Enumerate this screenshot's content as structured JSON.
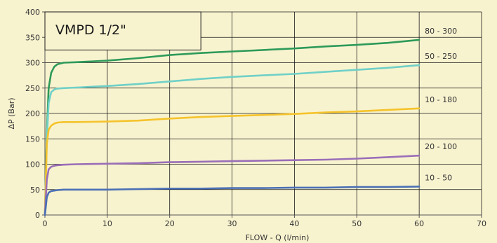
{
  "chart_data": {
    "type": "line",
    "title": "VMPD 1/2\"",
    "xlabel": "FLOW - Q (l/min)",
    "ylabel": "ΔP (Bar)",
    "xlim": [
      0,
      70
    ],
    "ylim": [
      0,
      400
    ],
    "xticks": [
      0,
      10,
      20,
      30,
      40,
      50,
      60,
      70
    ],
    "yticks": [
      0,
      50,
      100,
      150,
      200,
      250,
      300,
      350,
      400
    ],
    "grid": true,
    "legend": "inline-right",
    "colors": {
      "background": "#f8f3cf",
      "grid": "#1a1a1a",
      "axis": "#555555"
    },
    "series": [
      {
        "name": "80 - 300",
        "color": "#2e9a5a",
        "x": [
          0,
          0.3,
          0.6,
          1,
          1.5,
          2,
          3,
          5,
          10,
          15,
          20,
          25,
          30,
          35,
          40,
          45,
          50,
          55,
          60
        ],
        "y": [
          0,
          160,
          250,
          280,
          292,
          297,
          300,
          301,
          304,
          309,
          315,
          319,
          322,
          325,
          328,
          332,
          335,
          339,
          345
        ]
      },
      {
        "name": "50 - 250",
        "color": "#6fd0c7",
        "x": [
          0,
          0.3,
          0.6,
          1,
          1.5,
          2,
          3,
          5,
          10,
          15,
          20,
          25,
          30,
          35,
          40,
          45,
          50,
          55,
          60
        ],
        "y": [
          0,
          150,
          220,
          242,
          247,
          249,
          250,
          251,
          254,
          258,
          263,
          268,
          272,
          275,
          278,
          282,
          286,
          290,
          295
        ]
      },
      {
        "name": "10 - 180",
        "color": "#f5c32b",
        "x": [
          0,
          0.3,
          0.6,
          1,
          1.5,
          2,
          3,
          5,
          10,
          15,
          20,
          25,
          30,
          35,
          40,
          45,
          50,
          55,
          60
        ],
        "y": [
          0,
          140,
          168,
          176,
          180,
          182,
          183,
          183,
          184,
          186,
          190,
          193,
          195,
          197,
          199,
          202,
          204,
          207,
          210
        ]
      },
      {
        "name": "20 - 100",
        "color": "#9a6eb8",
        "x": [
          0,
          0.3,
          0.6,
          1,
          1.5,
          2,
          3,
          5,
          10,
          15,
          20,
          25,
          30,
          35,
          40,
          45,
          50,
          55,
          60
        ],
        "y": [
          0,
          70,
          90,
          95,
          97,
          98,
          99,
          100,
          101,
          102,
          104,
          105,
          106,
          107,
          108,
          109,
          111,
          114,
          117
        ]
      },
      {
        "name": "10 - 50",
        "color": "#4a6fb5",
        "x": [
          0,
          0.3,
          0.6,
          1,
          1.5,
          2,
          3,
          5,
          10,
          15,
          20,
          25,
          30,
          35,
          40,
          45,
          50,
          55,
          60
        ],
        "y": [
          0,
          35,
          44,
          47,
          48,
          49,
          50,
          50,
          50,
          51,
          52,
          52,
          53,
          53,
          54,
          54,
          55,
          55,
          56
        ]
      }
    ]
  }
}
